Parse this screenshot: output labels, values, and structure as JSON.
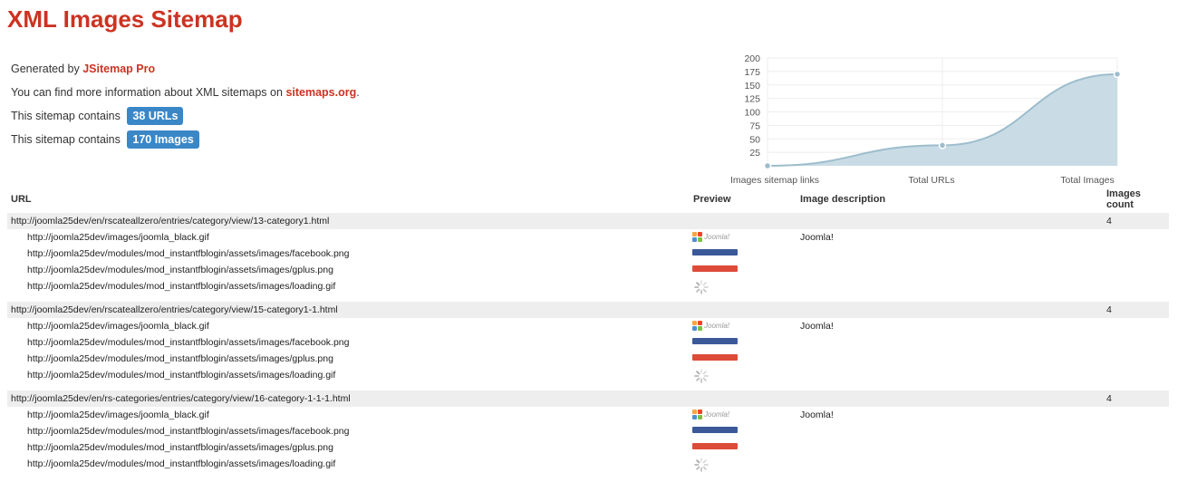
{
  "page": {
    "title": "XML Images Sitemap",
    "generated_prefix": "Generated by",
    "generator_link": "JSitemap Pro",
    "info_prefix": "You can find more information about XML sitemaps on",
    "info_link": "sitemaps.org",
    "info_suffix": ".",
    "contains_prefix": "This sitemap contains",
    "urls_badge": "38 URLs",
    "images_badge": "170 Images"
  },
  "colors": {
    "title": "#cc3322",
    "badge": "#3a87c8",
    "chart_fill": "#c9dce6",
    "chart_line": "#9dbdcc"
  },
  "chart_data": {
    "type": "area",
    "categories": [
      "Images sitemap links",
      "Total URLs",
      "Total Images"
    ],
    "values": [
      0,
      38,
      170
    ],
    "yticks": [
      25,
      50,
      75,
      100,
      125,
      150,
      175,
      200
    ],
    "ylim": [
      0,
      200
    ],
    "grid": true
  },
  "table": {
    "headers": {
      "url": "URL",
      "preview": "Preview",
      "description": "Image description",
      "count_line1": "Images",
      "count_line2": "count"
    },
    "groups": [
      {
        "url": "http://joomla25dev/en/rscateallzero/entries/category/view/13-category1.html",
        "count": "4",
        "images": [
          {
            "url": "http://joomla25dev/images/joomla_black.gif",
            "preview": "joomla-logo",
            "description": "Joomla!"
          },
          {
            "url": "http://joomla25dev/modules/mod_instantfblogin/assets/images/facebook.png",
            "preview": "facebook-button",
            "description": ""
          },
          {
            "url": "http://joomla25dev/modules/mod_instantfblogin/assets/images/gplus.png",
            "preview": "gplus-button",
            "description": ""
          },
          {
            "url": "http://joomla25dev/modules/mod_instantfblogin/assets/images/loading.gif",
            "preview": "loading-spinner",
            "description": ""
          }
        ]
      },
      {
        "url": "http://joomla25dev/en/rscateallzero/entries/category/view/15-category1-1.html",
        "count": "4",
        "images": [
          {
            "url": "http://joomla25dev/images/joomla_black.gif",
            "preview": "joomla-logo",
            "description": "Joomla!"
          },
          {
            "url": "http://joomla25dev/modules/mod_instantfblogin/assets/images/facebook.png",
            "preview": "facebook-button",
            "description": ""
          },
          {
            "url": "http://joomla25dev/modules/mod_instantfblogin/assets/images/gplus.png",
            "preview": "gplus-button",
            "description": ""
          },
          {
            "url": "http://joomla25dev/modules/mod_instantfblogin/assets/images/loading.gif",
            "preview": "loading-spinner",
            "description": ""
          }
        ]
      },
      {
        "url": "http://joomla25dev/en/rs-categories/entries/category/view/16-category-1-1-1.html",
        "count": "4",
        "images": [
          {
            "url": "http://joomla25dev/images/joomla_black.gif",
            "preview": "joomla-logo",
            "description": "Joomla!"
          },
          {
            "url": "http://joomla25dev/modules/mod_instantfblogin/assets/images/facebook.png",
            "preview": "facebook-button",
            "description": ""
          },
          {
            "url": "http://joomla25dev/modules/mod_instantfblogin/assets/images/gplus.png",
            "preview": "gplus-button",
            "description": ""
          },
          {
            "url": "http://joomla25dev/modules/mod_instantfblogin/assets/images/loading.gif",
            "preview": "loading-spinner",
            "description": ""
          }
        ]
      }
    ]
  }
}
